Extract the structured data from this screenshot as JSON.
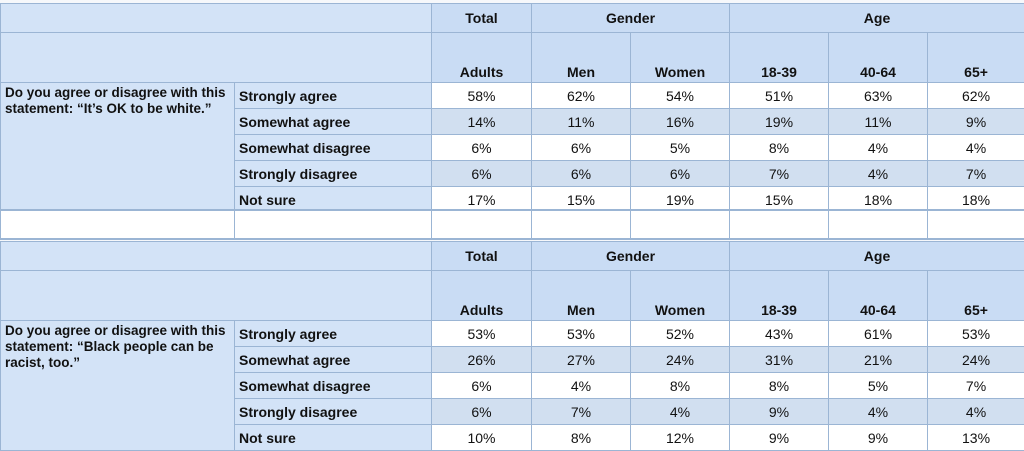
{
  "header": {
    "total": "Total",
    "gender": "Gender",
    "age": "Age",
    "sub": [
      "Adults",
      "Men",
      "Women",
      "18-39",
      "40-64",
      "65+"
    ]
  },
  "tables": [
    {
      "question": "Do you agree or disagree with this statement: “It’s OK to be white.”",
      "rows": [
        {
          "label": "Strongly agree",
          "values": [
            "58%",
            "62%",
            "54%",
            "51%",
            "63%",
            "62%"
          ]
        },
        {
          "label": "Somewhat agree",
          "values": [
            "14%",
            "11%",
            "16%",
            "19%",
            "11%",
            "9%"
          ]
        },
        {
          "label": "Somewhat disagree",
          "values": [
            "6%",
            "6%",
            "5%",
            "8%",
            "4%",
            "4%"
          ]
        },
        {
          "label": "Strongly disagree",
          "values": [
            "6%",
            "6%",
            "6%",
            "7%",
            "4%",
            "7%"
          ]
        },
        {
          "label": "Not sure",
          "values": [
            "17%",
            "15%",
            "19%",
            "15%",
            "18%",
            "18%"
          ]
        }
      ]
    },
    {
      "question": "Do you agree or disagree with this statement: “Black people can be racist, too.”",
      "rows": [
        {
          "label": "Strongly agree",
          "values": [
            "53%",
            "53%",
            "52%",
            "43%",
            "61%",
            "53%"
          ]
        },
        {
          "label": "Somewhat agree",
          "values": [
            "26%",
            "27%",
            "24%",
            "31%",
            "21%",
            "24%"
          ]
        },
        {
          "label": "Somewhat disagree",
          "values": [
            "6%",
            "4%",
            "8%",
            "8%",
            "5%",
            "7%"
          ]
        },
        {
          "label": "Strongly disagree",
          "values": [
            "6%",
            "7%",
            "4%",
            "9%",
            "4%",
            "4%"
          ]
        },
        {
          "label": "Not sure",
          "values": [
            "10%",
            "8%",
            "12%",
            "9%",
            "9%",
            "13%"
          ]
        }
      ]
    }
  ]
}
